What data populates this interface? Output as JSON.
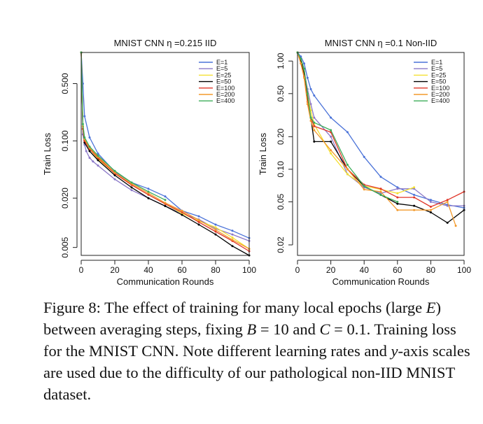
{
  "figure": {
    "caption": {
      "label": "Figure 8:",
      "t1": " The effect of training for many local epochs (large ",
      "E": "E",
      "t2": ") between averaging steps, fixing ",
      "B": "B",
      "eq1": " = 10 and ",
      "C": "C",
      "eq2": " = 0.1.",
      "t3": " Training loss for the MNIST CNN. Note different learning rates and ",
      "y": "y",
      "t4": "-axis scales are used due to the difficulty of our pathological non-IID MNIST dataset."
    }
  },
  "chart_data": [
    {
      "type": "line",
      "title": "MNIST CNN  η =0.215 IID",
      "xlabel": "Communication Rounds",
      "ylabel": "Train Loss",
      "y_scale": "log",
      "xlim": [
        0,
        100
      ],
      "ylim": [
        0.004,
        1.2
      ],
      "xticks": [
        0,
        20,
        40,
        60,
        80,
        100
      ],
      "xtick_labels": [
        "0",
        "20",
        "40",
        "60",
        "80",
        "100"
      ],
      "yticks": [
        0.005,
        0.02,
        0.1,
        0.5
      ],
      "ytick_labels": [
        "0.005",
        "0.020",
        "0.100",
        "0.500"
      ],
      "legend_position": "top-right",
      "series": [
        {
          "name": "E=1",
          "color": "#4a72d8",
          "x": [
            0,
            1,
            2,
            5,
            10,
            20,
            30,
            40,
            50,
            60,
            70,
            80,
            90,
            100
          ],
          "y": [
            1.2,
            0.5,
            0.2,
            0.11,
            0.07,
            0.042,
            0.031,
            0.026,
            0.021,
            0.014,
            0.012,
            0.0095,
            0.008,
            0.0065
          ]
        },
        {
          "name": "E=5",
          "color": "#8a78c8",
          "x": [
            0,
            1,
            2,
            3,
            5,
            7,
            10,
            20,
            30,
            40,
            50,
            60,
            70,
            80,
            90,
            100
          ],
          "y": [
            1.2,
            0.12,
            0.09,
            0.075,
            0.062,
            0.056,
            0.05,
            0.034,
            0.025,
            0.02,
            0.016,
            0.013,
            0.011,
            0.0085,
            0.0072,
            0.006
          ]
        },
        {
          "name": "E=25",
          "color": "#f4e030",
          "x": [
            0,
            1,
            2,
            5,
            10,
            20,
            30,
            40,
            50,
            60,
            70,
            80,
            90,
            100
          ],
          "y": [
            1.2,
            0.15,
            0.1,
            0.08,
            0.06,
            0.04,
            0.029,
            0.022,
            0.017,
            0.013,
            0.0105,
            0.0088,
            0.0066,
            0.0048
          ]
        },
        {
          "name": "E=50",
          "color": "#000000",
          "x": [
            0,
            1,
            2,
            5,
            10,
            20,
            30,
            40,
            50,
            60,
            70,
            80,
            90,
            100
          ],
          "y": [
            1.2,
            0.14,
            0.095,
            0.075,
            0.058,
            0.038,
            0.027,
            0.02,
            0.016,
            0.0125,
            0.0095,
            0.0072,
            0.0052,
            0.004
          ]
        },
        {
          "name": "E=100",
          "color": "#e03528",
          "x": [
            0,
            1,
            2,
            5,
            10,
            20,
            30,
            40,
            50,
            60,
            70,
            80,
            90,
            100
          ],
          "y": [
            1.2,
            0.14,
            0.1,
            0.08,
            0.062,
            0.04,
            0.029,
            0.022,
            0.017,
            0.0135,
            0.0102,
            0.0078,
            0.006,
            0.0045
          ]
        },
        {
          "name": "E=200",
          "color": "#f39a2c",
          "x": [
            0,
            1,
            2,
            5,
            10,
            20,
            30,
            40,
            50,
            60,
            70,
            80,
            90,
            100
          ],
          "y": [
            1.2,
            0.15,
            0.105,
            0.082,
            0.064,
            0.041,
            0.03,
            0.023,
            0.0175,
            0.014,
            0.0108,
            0.0082,
            0.0062,
            0.0048
          ]
        },
        {
          "name": "E=400",
          "color": "#3cad58",
          "x": [
            0,
            1,
            2,
            5,
            10,
            20,
            30,
            40,
            50
          ],
          "y": [
            1.2,
            0.16,
            0.11,
            0.085,
            0.066,
            0.043,
            0.031,
            0.024,
            0.019
          ]
        }
      ]
    },
    {
      "type": "line",
      "title": "MNIST CNN  η =0.1 Non-IID",
      "xlabel": "Communication Rounds",
      "ylabel": "Train Loss",
      "y_scale": "log",
      "xlim": [
        0,
        100
      ],
      "ylim": [
        0.016,
        1.2
      ],
      "xticks": [
        0,
        20,
        40,
        60,
        80,
        100
      ],
      "xtick_labels": [
        "0",
        "20",
        "40",
        "60",
        "80",
        "100"
      ],
      "yticks": [
        0.02,
        0.05,
        0.1,
        0.2,
        0.5,
        1.0
      ],
      "ytick_labels": [
        "0.02",
        "0.05",
        "0.10",
        "0.20",
        "0.50",
        "1.00"
      ],
      "legend_position": "top-right",
      "series": [
        {
          "name": "E=1",
          "color": "#4a72d8",
          "x": [
            0,
            2,
            4,
            6,
            8,
            10,
            20,
            30,
            40,
            50,
            60,
            70,
            80,
            90,
            100
          ],
          "y": [
            1.2,
            1.1,
            0.95,
            0.7,
            0.55,
            0.48,
            0.3,
            0.22,
            0.13,
            0.085,
            0.068,
            0.058,
            0.052,
            0.047,
            0.044
          ]
        },
        {
          "name": "E=5",
          "color": "#8a78c8",
          "x": [
            0,
            2,
            4,
            6,
            8,
            10,
            20,
            30,
            40,
            50,
            60,
            70,
            80,
            90,
            100
          ],
          "y": [
            1.2,
            1.0,
            0.8,
            0.55,
            0.4,
            0.3,
            0.2,
            0.09,
            0.068,
            0.06,
            0.066,
            0.066,
            0.05,
            0.046,
            0.046
          ]
        },
        {
          "name": "E=25",
          "color": "#f4e030",
          "x": [
            0,
            2,
            4,
            6,
            8,
            10,
            20,
            30,
            40,
            50,
            60,
            70
          ],
          "y": [
            1.2,
            1.0,
            0.78,
            0.5,
            0.35,
            0.26,
            0.14,
            0.09,
            0.07,
            0.065,
            0.06,
            0.068
          ]
        },
        {
          "name": "E=50",
          "color": "#000000",
          "x": [
            0,
            2,
            4,
            6,
            8,
            10,
            20,
            30,
            40,
            50,
            60,
            70,
            80,
            90,
            100
          ],
          "y": [
            1.2,
            1.0,
            0.75,
            0.45,
            0.3,
            0.18,
            0.18,
            0.1,
            0.07,
            0.058,
            0.048,
            0.046,
            0.04,
            0.032,
            0.042
          ]
        },
        {
          "name": "E=100",
          "color": "#e03528",
          "x": [
            0,
            2,
            4,
            6,
            8,
            10,
            20,
            30,
            40,
            50,
            60,
            70,
            80,
            90,
            100
          ],
          "y": [
            1.2,
            0.95,
            0.72,
            0.42,
            0.3,
            0.25,
            0.22,
            0.1,
            0.072,
            0.066,
            0.055,
            0.055,
            0.045,
            0.052,
            0.062
          ]
        },
        {
          "name": "E=200",
          "color": "#f39a2c",
          "x": [
            0,
            2,
            4,
            6,
            8,
            10,
            20,
            30,
            40,
            50,
            60,
            70,
            80,
            90,
            95
          ],
          "y": [
            1.2,
            0.95,
            0.7,
            0.4,
            0.28,
            0.23,
            0.15,
            0.1,
            0.065,
            0.062,
            0.042,
            0.042,
            0.042,
            0.05,
            0.03
          ]
        },
        {
          "name": "E=400",
          "color": "#3cad58",
          "x": [
            0,
            2,
            4,
            6,
            8,
            10,
            20,
            30,
            40,
            50,
            60
          ],
          "y": [
            1.2,
            1.05,
            0.85,
            0.5,
            0.3,
            0.27,
            0.23,
            0.11,
            0.07,
            0.058,
            0.05
          ]
        }
      ]
    }
  ]
}
